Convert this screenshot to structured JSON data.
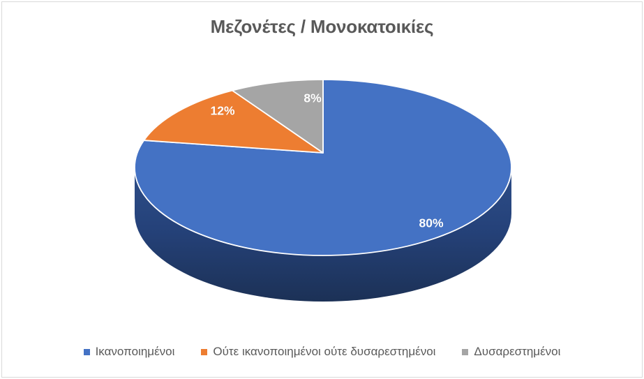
{
  "chart": {
    "title": "Μεζονέτες / Μονοκατοικίες",
    "title_color": "#595959",
    "background": "#FFFFFF",
    "border_color": "#D9D9D9",
    "text_color": "#595959"
  },
  "chart_data": {
    "type": "pie",
    "style": "3d",
    "title": "Μεζονέτες / Μονοκατοικίες",
    "direction": "clockwise",
    "start_angle_deg": 0,
    "legend_position": "bottom",
    "data_labels": "percent",
    "slices": [
      {
        "label": "Ικανοποιημένοι",
        "value_pct": 80,
        "data_label": "80%",
        "color": "#4472C4",
        "side_color": "#203864",
        "data_label_color": "#FFFFFF"
      },
      {
        "label": "Ούτε ικανοποιημένοι ούτε δυσαρεστημένοι",
        "value_pct": 12,
        "data_label": "12%",
        "color": "#ED7D31",
        "side_color": "#9C4B14",
        "data_label_color": "#FFFFFF"
      },
      {
        "label": "Δυσαρεστημένοι",
        "value_pct": 8,
        "data_label": "8%",
        "color": "#A5A5A5",
        "side_color": "#6E6E6E",
        "data_label_color": "#FFFFFF"
      }
    ]
  },
  "legend": {
    "items": [
      {
        "label": "Ικανοποιημένοι",
        "color": "#4472C4"
      },
      {
        "label": "Ούτε ικανοποιημένοι ούτε δυσαρεστημένοι",
        "color": "#ED7D31"
      },
      {
        "label": "Δυσαρεστημένοι",
        "color": "#A5A5A5"
      }
    ]
  }
}
